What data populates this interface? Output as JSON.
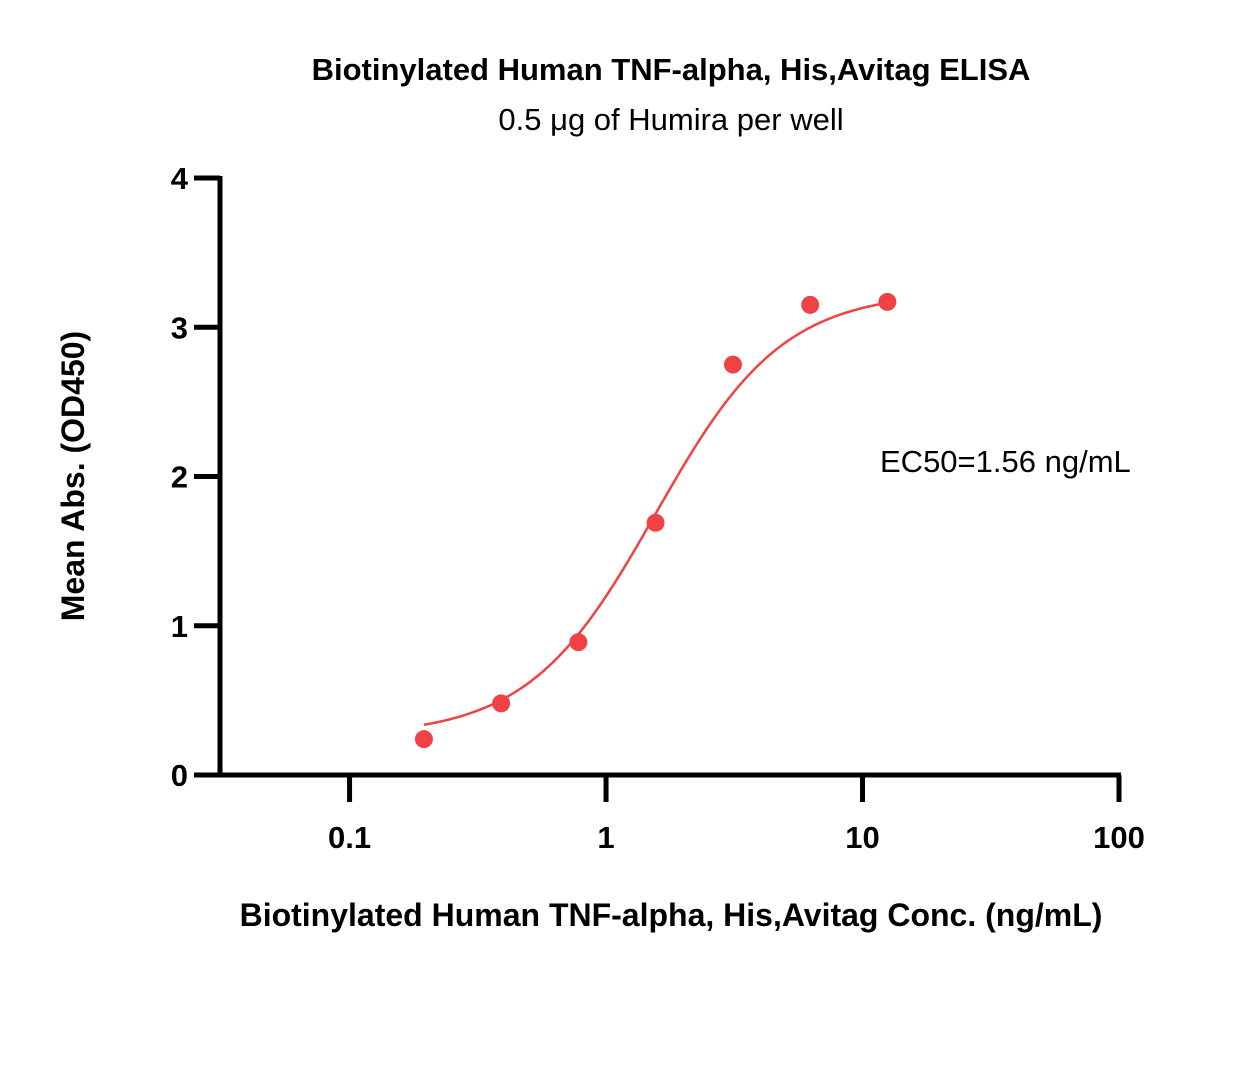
{
  "chart_data": {
    "type": "scatter",
    "title": "Biotinylated Human TNF-alpha, His,Avitag ELISA",
    "subtitle": "0.5 μg of Humira per well",
    "xlabel": "Biotinylated Human TNF-alpha, His,Avitag Conc. (ng/mL)",
    "ylabel": "Mean Abs. (OD450)",
    "xscale": "log",
    "xlim": [
      0.03125,
      100
    ],
    "ylim": [
      0,
      4
    ],
    "xticks": [
      0.1,
      1,
      10,
      100
    ],
    "xtick_labels": [
      "0.1",
      "1",
      "10",
      "100"
    ],
    "yticks": [
      0,
      1,
      2,
      3,
      4
    ],
    "ytick_labels": [
      "0",
      "1",
      "2",
      "3",
      "4"
    ],
    "grid": false,
    "legend": "none",
    "series": [
      {
        "color": "#f04245",
        "x": [
          0.195,
          0.39,
          0.78,
          1.56,
          3.125,
          6.25,
          12.5
        ],
        "y": [
          0.24,
          0.48,
          0.89,
          1.69,
          2.75,
          3.15,
          3.17
        ],
        "fit": {
          "model": "4PL",
          "bottom": 0.26,
          "top": 3.24,
          "ec50": 1.56,
          "hill": 1.75,
          "x_range": [
            0.195,
            12.5
          ]
        }
      }
    ],
    "annotations": [
      {
        "text": "EC50=1.56 ng/mL"
      }
    ]
  }
}
